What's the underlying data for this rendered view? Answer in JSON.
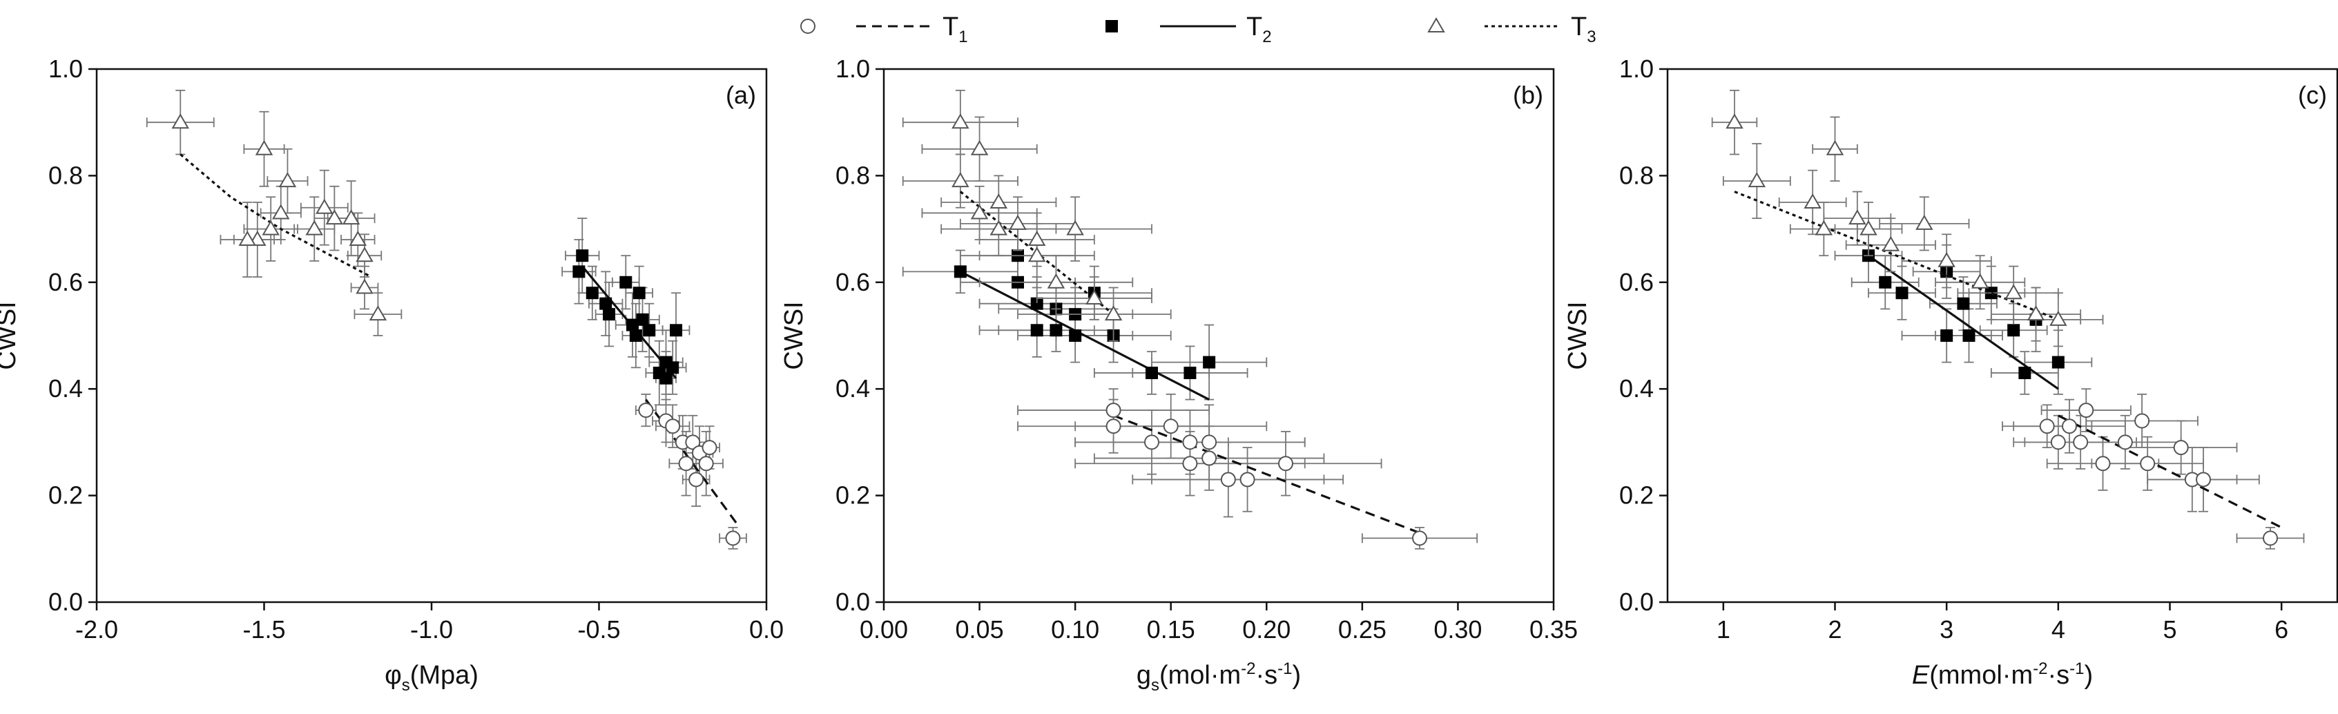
{
  "legend": [
    {
      "series": "T1",
      "label": "T",
      "sub": "1",
      "marker": "circle-open",
      "line": "dash"
    },
    {
      "series": "T2",
      "label": "T",
      "sub": "2",
      "marker": "square-filled",
      "line": "solid"
    },
    {
      "series": "T3",
      "label": "T",
      "sub": "3",
      "marker": "triangle-open",
      "line": "dot"
    }
  ],
  "colors": {
    "axis": "#111111",
    "open_edge": "#555555",
    "filled": "#000000",
    "errorbar": "#777777"
  },
  "chart_data": [
    {
      "type": "scatter",
      "panel_label": "(a)",
      "xlabel": {
        "main": "φ",
        "sub": "s",
        "rest": "(Mpa)"
      },
      "ylabel": "CWSI",
      "xlim": [
        -2.0,
        0.0
      ],
      "ylim": [
        0.0,
        1.0
      ],
      "xticks": [
        -2.0,
        -1.5,
        -1.0,
        -0.5,
        0.0
      ],
      "xtick_labels": [
        "-2.0",
        "-1.5",
        "-1.0",
        "-0.5",
        "0.0"
      ],
      "yticks": [
        0.0,
        0.2,
        0.4,
        0.6,
        0.8,
        1.0
      ],
      "ytick_labels": [
        "0.0",
        "0.2",
        "0.4",
        "0.6",
        "0.8",
        "1.0"
      ],
      "series": [
        {
          "name": "T1",
          "points": [
            [
              -0.36,
              0.36,
              0.03,
              0.03
            ],
            [
              -0.3,
              0.34,
              0.04,
              0.04
            ],
            [
              -0.28,
              0.33,
              0.05,
              0.04
            ],
            [
              -0.25,
              0.3,
              0.05,
              0.05
            ],
            [
              -0.22,
              0.3,
              0.04,
              0.05
            ],
            [
              -0.2,
              0.28,
              0.04,
              0.05
            ],
            [
              -0.18,
              0.26,
              0.05,
              0.06
            ],
            [
              -0.24,
              0.26,
              0.05,
              0.06
            ],
            [
              -0.17,
              0.29,
              0.03,
              0.04
            ],
            [
              -0.21,
              0.23,
              0.04,
              0.05
            ],
            [
              -0.1,
              0.12,
              0.04,
              0.02
            ]
          ],
          "fit": [
            [
              -0.36,
              0.38
            ],
            [
              -0.08,
              0.14
            ]
          ]
        },
        {
          "name": "T2",
          "points": [
            [
              -0.55,
              0.65,
              0.05,
              0.07
            ],
            [
              -0.56,
              0.62,
              0.05,
              0.06
            ],
            [
              -0.52,
              0.58,
              0.04,
              0.05
            ],
            [
              -0.48,
              0.56,
              0.05,
              0.06
            ],
            [
              -0.47,
              0.54,
              0.04,
              0.06
            ],
            [
              -0.42,
              0.6,
              0.04,
              0.05
            ],
            [
              -0.4,
              0.52,
              0.05,
              0.06
            ],
            [
              -0.38,
              0.58,
              0.04,
              0.05
            ],
            [
              -0.37,
              0.53,
              0.05,
              0.06
            ],
            [
              -0.39,
              0.5,
              0.04,
              0.06
            ],
            [
              -0.35,
              0.51,
              0.04,
              0.05
            ],
            [
              -0.32,
              0.43,
              0.04,
              0.06
            ],
            [
              -0.3,
              0.45,
              0.05,
              0.06
            ],
            [
              -0.28,
              0.44,
              0.04,
              0.05
            ],
            [
              -0.27,
              0.51,
              0.04,
              0.07
            ],
            [
              -0.3,
              0.42,
              0.03,
              0.05
            ]
          ],
          "fit": [
            [
              -0.55,
              0.63
            ],
            [
              -0.27,
              0.42
            ]
          ]
        },
        {
          "name": "T3",
          "points": [
            [
              -1.75,
              0.9,
              0.1,
              0.06
            ],
            [
              -1.5,
              0.85,
              0.06,
              0.07
            ],
            [
              -1.43,
              0.79,
              0.06,
              0.06
            ],
            [
              -1.45,
              0.73,
              0.06,
              0.05
            ],
            [
              -1.48,
              0.7,
              0.08,
              0.06
            ],
            [
              -1.52,
              0.68,
              0.07,
              0.07
            ],
            [
              -1.55,
              0.68,
              0.08,
              0.07
            ],
            [
              -1.35,
              0.7,
              0.06,
              0.06
            ],
            [
              -1.32,
              0.74,
              0.07,
              0.07
            ],
            [
              -1.29,
              0.72,
              0.06,
              0.06
            ],
            [
              -1.24,
              0.72,
              0.07,
              0.07
            ],
            [
              -1.22,
              0.68,
              0.05,
              0.05
            ],
            [
              -1.2,
              0.65,
              0.05,
              0.04
            ],
            [
              -1.2,
              0.59,
              0.04,
              0.04
            ],
            [
              -1.16,
              0.54,
              0.07,
              0.04
            ]
          ],
          "fit": [
            [
              -1.75,
              0.84
            ],
            [
              -1.6,
              0.76
            ],
            [
              -1.45,
              0.7
            ],
            [
              -1.3,
              0.65
            ],
            [
              -1.18,
              0.61
            ]
          ]
        }
      ]
    },
    {
      "type": "scatter",
      "panel_label": "(b)",
      "xlabel": {
        "main": "g",
        "sub": "s",
        "rest": "(mol·m",
        "sup1": "-2",
        "mid": "·s",
        "sup2": "-1",
        "end": ")"
      },
      "ylabel": "CWSI",
      "xlim": [
        0.0,
        0.35
      ],
      "ylim": [
        0.0,
        1.0
      ],
      "xticks": [
        0.0,
        0.05,
        0.1,
        0.15,
        0.2,
        0.25,
        0.3,
        0.35
      ],
      "xtick_labels": [
        "0.00",
        "0.05",
        "0.10",
        "0.15",
        "0.20",
        "0.25",
        "0.30",
        "0.35"
      ],
      "yticks": [
        0.0,
        0.2,
        0.4,
        0.6,
        0.8,
        1.0
      ],
      "ytick_labels": [
        "0.0",
        "0.2",
        "0.4",
        "0.6",
        "0.8",
        "1.0"
      ],
      "series": [
        {
          "name": "T1",
          "points": [
            [
              0.12,
              0.36,
              0.05,
              0.04
            ],
            [
              0.12,
              0.33,
              0.05,
              0.05
            ],
            [
              0.14,
              0.3,
              0.04,
              0.06
            ],
            [
              0.15,
              0.33,
              0.05,
              0.06
            ],
            [
              0.16,
              0.3,
              0.06,
              0.06
            ],
            [
              0.16,
              0.26,
              0.06,
              0.06
            ],
            [
              0.17,
              0.3,
              0.05,
              0.07
            ],
            [
              0.17,
              0.27,
              0.06,
              0.06
            ],
            [
              0.18,
              0.23,
              0.05,
              0.07
            ],
            [
              0.19,
              0.23,
              0.05,
              0.06
            ],
            [
              0.21,
              0.26,
              0.05,
              0.06
            ],
            [
              0.28,
              0.12,
              0.03,
              0.02
            ]
          ],
          "fit": [
            [
              0.12,
              0.35
            ],
            [
              0.28,
              0.13
            ]
          ]
        },
        {
          "name": "T2",
          "points": [
            [
              0.04,
              0.62,
              0.03,
              0.04
            ],
            [
              0.07,
              0.65,
              0.03,
              0.05
            ],
            [
              0.07,
              0.6,
              0.03,
              0.04
            ],
            [
              0.08,
              0.56,
              0.03,
              0.05
            ],
            [
              0.08,
              0.51,
              0.03,
              0.05
            ],
            [
              0.09,
              0.55,
              0.03,
              0.05
            ],
            [
              0.09,
              0.51,
              0.03,
              0.04
            ],
            [
              0.1,
              0.54,
              0.03,
              0.05
            ],
            [
              0.1,
              0.5,
              0.03,
              0.05
            ],
            [
              0.11,
              0.58,
              0.03,
              0.05
            ],
            [
              0.12,
              0.5,
              0.03,
              0.05
            ],
            [
              0.14,
              0.43,
              0.03,
              0.04
            ],
            [
              0.16,
              0.43,
              0.03,
              0.05
            ],
            [
              0.17,
              0.45,
              0.03,
              0.07
            ]
          ],
          "fit": [
            [
              0.04,
              0.62
            ],
            [
              0.17,
              0.38
            ]
          ]
        },
        {
          "name": "T3",
          "points": [
            [
              0.04,
              0.9,
              0.03,
              0.06
            ],
            [
              0.05,
              0.85,
              0.03,
              0.06
            ],
            [
              0.04,
              0.79,
              0.03,
              0.05
            ],
            [
              0.06,
              0.75,
              0.03,
              0.05
            ],
            [
              0.05,
              0.73,
              0.03,
              0.05
            ],
            [
              0.06,
              0.7,
              0.03,
              0.05
            ],
            [
              0.07,
              0.71,
              0.03,
              0.05
            ],
            [
              0.08,
              0.65,
              0.03,
              0.06
            ],
            [
              0.08,
              0.68,
              0.03,
              0.05
            ],
            [
              0.09,
              0.6,
              0.04,
              0.05
            ],
            [
              0.1,
              0.7,
              0.04,
              0.06
            ],
            [
              0.12,
              0.54,
              0.03,
              0.05
            ],
            [
              0.11,
              0.57,
              0.03,
              0.04
            ]
          ],
          "fit": [
            [
              0.04,
              0.77
            ],
            [
              0.12,
              0.54
            ]
          ]
        }
      ]
    },
    {
      "type": "scatter",
      "panel_label": "(c)",
      "xlabel": {
        "main": "E",
        "sub": "",
        "rest": "(mmol·m",
        "sup1": "-2",
        "mid": "·s",
        "sup2": "-1",
        "end": ")"
      },
      "ylabel": "CWSI",
      "xlim": [
        0.5,
        6.5
      ],
      "ylim": [
        0.0,
        1.0
      ],
      "xticks": [
        1,
        2,
        3,
        4,
        5,
        6
      ],
      "xtick_labels": [
        "1",
        "2",
        "3",
        "4",
        "5",
        "6"
      ],
      "yticks": [
        0.0,
        0.2,
        0.4,
        0.6,
        0.8,
        1.0
      ],
      "ytick_labels": [
        "0.0",
        "0.2",
        "0.4",
        "0.6",
        "0.8",
        "1.0"
      ],
      "series": [
        {
          "name": "T1",
          "points": [
            [
              3.9,
              0.33,
              0.4,
              0.04
            ],
            [
              4.0,
              0.3,
              0.4,
              0.05
            ],
            [
              4.1,
              0.33,
              0.5,
              0.05
            ],
            [
              4.2,
              0.3,
              0.5,
              0.05
            ],
            [
              4.25,
              0.36,
              0.4,
              0.04
            ],
            [
              4.4,
              0.26,
              0.5,
              0.05
            ],
            [
              4.6,
              0.3,
              0.5,
              0.05
            ],
            [
              4.75,
              0.34,
              0.5,
              0.05
            ],
            [
              4.8,
              0.26,
              0.5,
              0.05
            ],
            [
              5.1,
              0.29,
              0.5,
              0.05
            ],
            [
              5.2,
              0.23,
              0.4,
              0.06
            ],
            [
              5.3,
              0.23,
              0.5,
              0.06
            ],
            [
              5.9,
              0.12,
              0.3,
              0.02
            ]
          ],
          "fit": [
            [
              4.0,
              0.35
            ],
            [
              6.0,
              0.14
            ]
          ]
        },
        {
          "name": "T2",
          "points": [
            [
              2.3,
              0.65,
              0.3,
              0.05
            ],
            [
              2.45,
              0.6,
              0.3,
              0.05
            ],
            [
              2.6,
              0.58,
              0.3,
              0.05
            ],
            [
              3.0,
              0.62,
              0.3,
              0.05
            ],
            [
              3.0,
              0.5,
              0.4,
              0.05
            ],
            [
              3.15,
              0.56,
              0.3,
              0.05
            ],
            [
              3.2,
              0.5,
              0.3,
              0.05
            ],
            [
              3.4,
              0.58,
              0.3,
              0.05
            ],
            [
              3.6,
              0.51,
              0.3,
              0.05
            ],
            [
              3.7,
              0.43,
              0.3,
              0.04
            ],
            [
              3.8,
              0.53,
              0.4,
              0.06
            ],
            [
              4.0,
              0.45,
              0.3,
              0.06
            ]
          ],
          "fit": [
            [
              2.3,
              0.65
            ],
            [
              4.0,
              0.4
            ]
          ]
        },
        {
          "name": "T3",
          "points": [
            [
              1.1,
              0.9,
              0.2,
              0.06
            ],
            [
              1.3,
              0.79,
              0.3,
              0.07
            ],
            [
              1.8,
              0.75,
              0.3,
              0.06
            ],
            [
              2.0,
              0.85,
              0.2,
              0.06
            ],
            [
              1.9,
              0.7,
              0.3,
              0.05
            ],
            [
              2.2,
              0.72,
              0.3,
              0.05
            ],
            [
              2.3,
              0.7,
              0.3,
              0.05
            ],
            [
              2.5,
              0.67,
              0.4,
              0.05
            ],
            [
              2.8,
              0.71,
              0.4,
              0.05
            ],
            [
              3.0,
              0.64,
              0.4,
              0.05
            ],
            [
              3.3,
              0.6,
              0.4,
              0.05
            ],
            [
              3.6,
              0.58,
              0.4,
              0.05
            ],
            [
              3.8,
              0.54,
              0.4,
              0.05
            ],
            [
              4.0,
              0.53,
              0.4,
              0.05
            ]
          ],
          "fit": [
            [
              1.1,
              0.77
            ],
            [
              4.0,
              0.53
            ]
          ]
        }
      ]
    }
  ]
}
